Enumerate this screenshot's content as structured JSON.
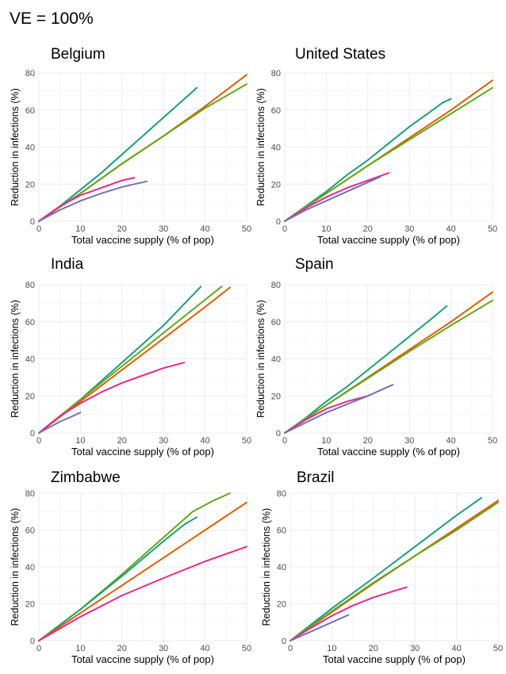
{
  "title": "VE = 100%",
  "colors": {
    "teal": "#1b9e77",
    "orange": "#d95f02",
    "purple": "#7570b3",
    "magenta": "#e7298a",
    "green": "#66a61e",
    "grid": "#ebebeb"
  },
  "chart_data": [
    {
      "type": "line",
      "title": "Belgium",
      "xlabel": "Total vaccine supply (% of pop)",
      "ylabel": "Reduction in infections (%)",
      "xlim": [
        0,
        50
      ],
      "ylim": [
        0,
        80
      ],
      "xticks": [
        0,
        10,
        20,
        30,
        40,
        50
      ],
      "yticks": [
        0,
        20,
        40,
        60,
        80
      ],
      "grid": true,
      "series": [
        {
          "color": "#1b9e77",
          "x": [
            0,
            5,
            10,
            15,
            20,
            25,
            30,
            35,
            38
          ],
          "y": [
            0,
            8,
            17,
            26,
            36,
            46,
            56,
            66,
            72
          ]
        },
        {
          "color": "#d95f02",
          "x": [
            0,
            10,
            20,
            30,
            40,
            50
          ],
          "y": [
            0,
            15,
            31,
            46,
            62,
            79
          ]
        },
        {
          "color": "#66a61e",
          "x": [
            0,
            10,
            20,
            30,
            40,
            50
          ],
          "y": [
            0,
            15,
            31,
            46,
            61,
            74
          ]
        },
        {
          "color": "#e7298a",
          "x": [
            0,
            5,
            10,
            15,
            20,
            23
          ],
          "y": [
            0,
            8,
            14,
            18,
            22,
            23.5
          ]
        },
        {
          "color": "#7570b3",
          "x": [
            0,
            5,
            10,
            15,
            20,
            26
          ],
          "y": [
            0,
            6,
            11,
            15,
            18.5,
            21.5
          ]
        }
      ]
    },
    {
      "type": "line",
      "title": "United States",
      "xlabel": "Total vaccine supply (% of pop)",
      "ylabel": "Reduction in infections (%)",
      "xlim": [
        0,
        50
      ],
      "ylim": [
        0,
        80
      ],
      "xticks": [
        0,
        10,
        20,
        30,
        40,
        50
      ],
      "yticks": [
        0,
        20,
        40,
        60,
        80
      ],
      "grid": true,
      "series": [
        {
          "color": "#1b9e77",
          "x": [
            0,
            5,
            10,
            15,
            20,
            25,
            30,
            35,
            38,
            40
          ],
          "y": [
            0,
            8,
            16,
            25,
            33,
            42,
            51,
            59,
            64,
            66
          ]
        },
        {
          "color": "#d95f02",
          "x": [
            0,
            10,
            20,
            30,
            40,
            50
          ],
          "y": [
            0,
            15,
            30,
            45,
            60,
            76
          ]
        },
        {
          "color": "#66a61e",
          "x": [
            0,
            10,
            20,
            30,
            40,
            50
          ],
          "y": [
            0,
            15,
            30,
            44,
            58,
            72
          ]
        },
        {
          "color": "#e7298a",
          "x": [
            0,
            5,
            10,
            15,
            20,
            25
          ],
          "y": [
            0,
            7,
            13,
            18,
            22,
            26
          ]
        },
        {
          "color": "#7570b3",
          "x": [
            0,
            5,
            10,
            15,
            20,
            23
          ],
          "y": [
            0,
            6,
            11,
            16,
            21,
            24
          ]
        }
      ]
    },
    {
      "type": "line",
      "title": "India",
      "xlabel": "Total vaccine supply (% of pop)",
      "ylabel": "Reduction in infections (%)",
      "xlim": [
        0,
        50
      ],
      "ylim": [
        0,
        80
      ],
      "xticks": [
        0,
        10,
        20,
        30,
        40,
        50
      ],
      "yticks": [
        0,
        20,
        40,
        60,
        80
      ],
      "grid": true,
      "series": [
        {
          "color": "#1b9e77",
          "x": [
            0,
            10,
            20,
            30,
            39
          ],
          "y": [
            0,
            18,
            38,
            58,
            79
          ]
        },
        {
          "color": "#66a61e",
          "x": [
            0,
            10,
            20,
            30,
            44
          ],
          "y": [
            0,
            18,
            36,
            54,
            79
          ]
        },
        {
          "color": "#d95f02",
          "x": [
            0,
            10,
            20,
            30,
            40,
            46
          ],
          "y": [
            0,
            17,
            34,
            51,
            68,
            78.5
          ]
        },
        {
          "color": "#e7298a",
          "x": [
            0,
            5,
            10,
            15,
            20,
            25,
            30,
            35
          ],
          "y": [
            0,
            9,
            16,
            22,
            27,
            31,
            35,
            38
          ]
        },
        {
          "color": "#7570b3",
          "x": [
            0,
            5,
            10
          ],
          "y": [
            0,
            6,
            11
          ]
        }
      ]
    },
    {
      "type": "line",
      "title": "Spain",
      "xlabel": "Total vaccine supply (% of pop)",
      "ylabel": "Reduction in infections (%)",
      "xlim": [
        0,
        50
      ],
      "ylim": [
        0,
        80
      ],
      "xticks": [
        0,
        10,
        20,
        30,
        40,
        50
      ],
      "yticks": [
        0,
        20,
        40,
        60,
        80
      ],
      "grid": true,
      "series": [
        {
          "color": "#1b9e77",
          "x": [
            0,
            5,
            10,
            15,
            20,
            25,
            30,
            35,
            39
          ],
          "y": [
            0,
            8,
            17,
            25,
            34,
            43,
            52,
            61,
            68.5
          ]
        },
        {
          "color": "#d95f02",
          "x": [
            0,
            10,
            20,
            30,
            40,
            50
          ],
          "y": [
            0,
            15,
            30,
            45,
            60,
            76
          ]
        },
        {
          "color": "#66a61e",
          "x": [
            0,
            10,
            20,
            30,
            40,
            50
          ],
          "y": [
            0,
            15,
            29.5,
            44,
            58,
            71.5
          ]
        },
        {
          "color": "#e7298a",
          "x": [
            0,
            5,
            10,
            15,
            20
          ],
          "y": [
            0,
            7,
            13,
            17,
            20
          ]
        },
        {
          "color": "#7570b3",
          "x": [
            0,
            5,
            10,
            15,
            20,
            26
          ],
          "y": [
            0,
            5.5,
            11,
            15.5,
            20,
            26
          ]
        }
      ]
    },
    {
      "type": "line",
      "title": "Zimbabwe",
      "xlabel": "Total vaccine supply (% of pop)",
      "ylabel": "Reduction in infections (%)",
      "xlim": [
        0,
        50
      ],
      "ylim": [
        0,
        80
      ],
      "xticks": [
        0,
        10,
        20,
        30,
        40,
        50
      ],
      "yticks": [
        0,
        20,
        40,
        60,
        80
      ],
      "grid": true,
      "series": [
        {
          "color": "#66a61e",
          "x": [
            0,
            10,
            20,
            30,
            37,
            42,
            46
          ],
          "y": [
            0,
            17,
            36,
            56,
            70,
            76,
            80
          ]
        },
        {
          "color": "#1b9e77",
          "x": [
            0,
            10,
            20,
            30,
            35,
            38
          ],
          "y": [
            0,
            17,
            35,
            54,
            63,
            67
          ]
        },
        {
          "color": "#d95f02",
          "x": [
            0,
            10,
            20,
            30,
            40,
            50
          ],
          "y": [
            0,
            15,
            30,
            45,
            60,
            75
          ]
        },
        {
          "color": "#e7298a",
          "x": [
            0,
            10,
            20,
            30,
            40,
            50
          ],
          "y": [
            0,
            13,
            24.5,
            34,
            43,
            51
          ]
        }
      ]
    },
    {
      "type": "line",
      "title": "Brazil",
      "xlabel": "Total vaccine supply (% of pop)",
      "ylabel": "Reduction in infections (%)",
      "xlim": [
        0,
        50
      ],
      "ylim": [
        0,
        80
      ],
      "xticks": [
        0,
        10,
        20,
        30,
        40,
        50
      ],
      "yticks": [
        0,
        20,
        40,
        60,
        80
      ],
      "grid": true,
      "series": [
        {
          "color": "#1b9e77",
          "x": [
            0,
            10,
            20,
            30,
            40,
            46
          ],
          "y": [
            0,
            17.5,
            34,
            51,
            68,
            77.5
          ]
        },
        {
          "color": "#d95f02",
          "x": [
            0,
            10,
            20,
            30,
            40,
            50
          ],
          "y": [
            0,
            15.5,
            31,
            46,
            61,
            76
          ]
        },
        {
          "color": "#66a61e",
          "x": [
            0,
            10,
            20,
            30,
            40,
            50
          ],
          "y": [
            0,
            16,
            31.5,
            46,
            60,
            75
          ]
        },
        {
          "color": "#e7298a",
          "x": [
            0,
            5,
            10,
            15,
            20,
            25,
            28
          ],
          "y": [
            0,
            7,
            13.5,
            19,
            23.5,
            27,
            29
          ]
        },
        {
          "color": "#7570b3",
          "x": [
            0,
            5,
            10,
            14
          ],
          "y": [
            0,
            5,
            10,
            14
          ]
        }
      ]
    }
  ]
}
